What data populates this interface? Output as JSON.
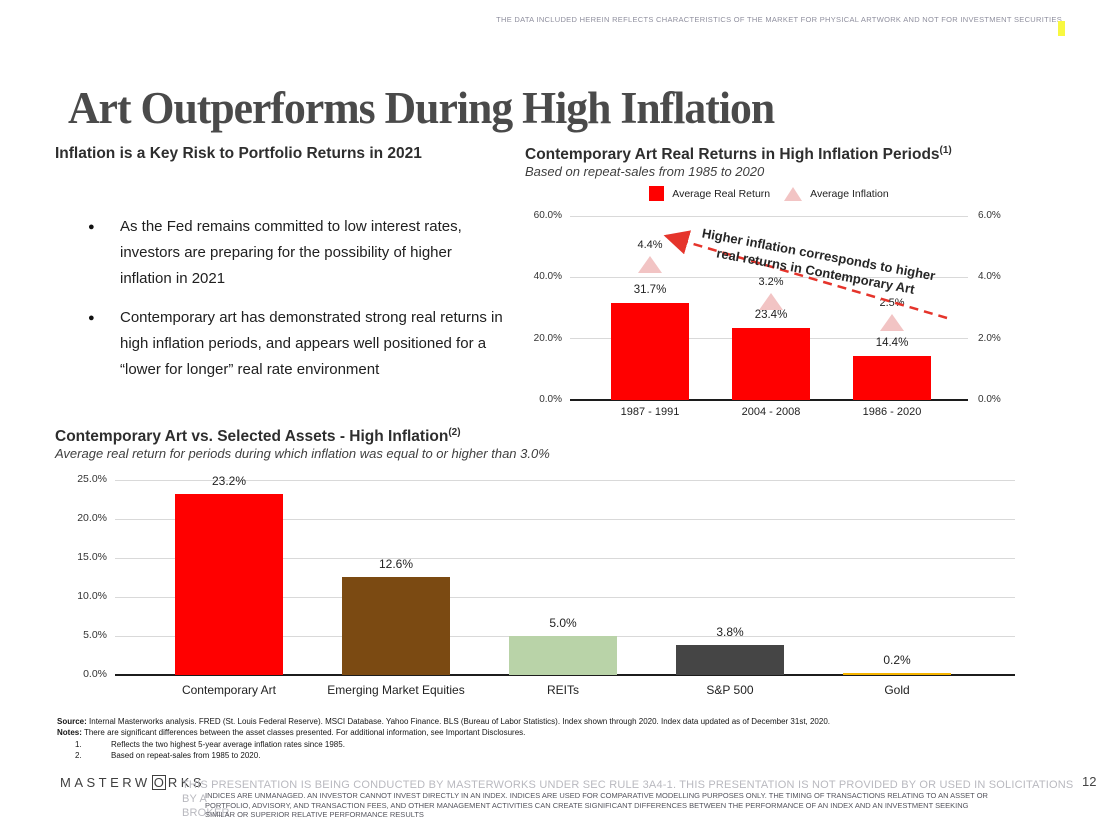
{
  "top_disclaimer": "THE DATA INCLUDED HEREIN REFLECTS CHARACTERISTICS OF THE MARKET FOR PHYSICAL ARTWORK AND NOT FOR INVESTMENT SECURITIES",
  "page_title": "Art Outperforms During High Inflation",
  "left_section": {
    "heading": "Inflation is a Key Risk to Portfolio Returns in 2021",
    "bullets": [
      "As the Fed remains committed to low interest rates, investors are preparing for the possibility of higher inflation in 2021",
      "Contemporary art has demonstrated strong real returns in high inflation periods, and appears well positioned for a “lower for longer” real rate environment"
    ]
  },
  "chart_data": [
    {
      "type": "bar",
      "title": "Contemporary Art Real Returns in High Inflation Periods",
      "title_footnote": "(1)",
      "subtitle": "Based on repeat-sales from 1985 to 2020",
      "categories": [
        "1987 - 1991",
        "2004 - 2008",
        "1986 - 2020"
      ],
      "series": [
        {
          "name": "Average Real Return",
          "marker": "bar",
          "axis": "left",
          "color": "#ff0000",
          "values": [
            31.7,
            23.4,
            14.4
          ],
          "labels": [
            "31.7%",
            "23.4%",
            "14.4%"
          ]
        },
        {
          "name": "Average Inflation",
          "marker": "triangle",
          "axis": "right",
          "color": "#f2c4c4",
          "values": [
            4.4,
            3.2,
            2.5
          ],
          "labels": [
            "4.4%",
            "3.2%",
            "2.5%"
          ]
        }
      ],
      "left_axis": {
        "min": 0,
        "max": 60,
        "ticks": [
          0,
          20,
          40,
          60
        ],
        "tick_labels": [
          "0.0%",
          "20.0%",
          "40.0%",
          "60.0%"
        ]
      },
      "right_axis": {
        "min": 0,
        "max": 6,
        "ticks": [
          0,
          2,
          4,
          6
        ],
        "tick_labels": [
          "0.0%",
          "2.0%",
          "4.0%",
          "6.0%"
        ]
      },
      "legend_position": "top",
      "grid": true,
      "annotation": {
        "line1": "Higher inflation corresponds to higher",
        "line2": "real returns in Contemporary Art",
        "arrow_color": "#e5342b"
      }
    },
    {
      "type": "bar",
      "title": "Contemporary Art vs. Selected Assets - High Inflation",
      "title_footnote": "(2)",
      "subtitle": "Average real return for periods during which inflation was equal to or higher than 3.0%",
      "categories": [
        "Contemporary Art",
        "Emerging Market Equities",
        "REITs",
        "S&P 500",
        "Gold"
      ],
      "values": [
        23.2,
        12.6,
        5.0,
        3.8,
        0.2
      ],
      "labels": [
        "23.2%",
        "12.6%",
        "5.0%",
        "3.8%",
        "0.2%"
      ],
      "colors": [
        "#ff0000",
        "#7b4a12",
        "#b9d3a8",
        "#454545",
        "#f7b500"
      ],
      "ylim": [
        0,
        25
      ],
      "yticks": [
        0,
        5,
        10,
        15,
        20,
        25
      ],
      "ytick_labels": [
        "0.0%",
        "5.0%",
        "10.0%",
        "15.0%",
        "20.0%",
        "25.0%"
      ],
      "grid": true
    }
  ],
  "footnotes": {
    "source_label": "Source:",
    "source_text": " Internal Masterworks analysis. FRED (St. Louis Federal Reserve). MSCI Database. Yahoo Finance. BLS (Bureau of Labor Statistics). Index shown through 2020. Index data updated as of December 31st, 2020.",
    "notes_label": "Notes:",
    "notes_text": " There are significant differences between the asset classes presented. For additional information, see Important Disclosures.",
    "numbered": [
      {
        "num": "1.",
        "text": "Reflects the two highest 5-year average inflation rates since 1985."
      },
      {
        "num": "2.",
        "text": "Based on repeat-sales from 1985 to 2020."
      }
    ]
  },
  "footer": {
    "logo_prefix": "MASTERW",
    "logo_o": "O",
    "logo_suffix": "RKS",
    "disclaimer_layer1_line1": "THIS PRESENTATION  IS BEING CONDUCTED BY MASTERWORKS UNDER SEC RULE 3A4-1. THIS PRESENTATION  IS NOT PROVIDED BY OR USED IN SOLICITATIONS BY A",
    "disclaimer_layer1_line2": "BROKER",
    "disclaimer_layer2_lines": [
      "INDICES ARE UNMANAGED. AN INVESTOR CANNOT INVEST DIRECTLY IN AN INDEX. INDICES ARE USED FOR COMPARATIVE MODELLING PURPOSES ONLY. THE TIMING OF TRANSACTIONS RELATING TO AN ASSET OR",
      "PORTFOLIO, ADVISORY, AND TRANSACTION FEES, AND OTHER MANAGEMENT ACTIVITIES CAN CREATE SIGNIFICANT DIFFERENCES BETWEEN THE PERFORMANCE OF AN INDEX AND AN INVESTMENT SEEKING",
      "SIMILAR OR SUPERIOR RELATIVE PERFORMANCE RESULTS"
    ],
    "page_number": "12"
  }
}
